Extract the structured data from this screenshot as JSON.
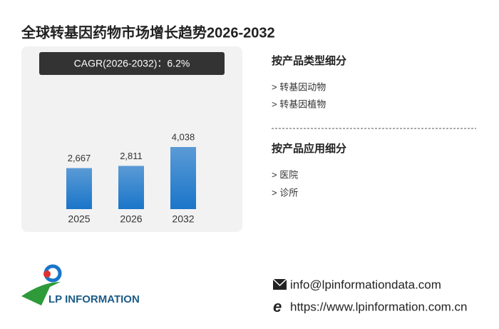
{
  "header": {
    "title": "全球转基因药物市场增长趋势2026-2032"
  },
  "cagr": "CAGR(2026-2032)：6.2%",
  "chart_data": {
    "type": "bar",
    "categories": [
      "2025",
      "2026",
      "2032"
    ],
    "values": [
      2667,
      2811,
      4038
    ],
    "value_labels": [
      "2,667",
      "2,811",
      "4,038"
    ],
    "color": "#1a75c9"
  },
  "segments": [
    {
      "heading": "按产品类型细分",
      "items": [
        "> 转基因动物",
        "> 转基因植物"
      ]
    },
    {
      "heading": "按产品应用细分",
      "items": [
        "> 医院",
        "> 诊所"
      ]
    }
  ],
  "logo": {
    "text": "LP INFORMATION"
  },
  "contact": {
    "email": "info@lpinformationdata.com",
    "website": "https://www.lpinformation.com.cn"
  }
}
